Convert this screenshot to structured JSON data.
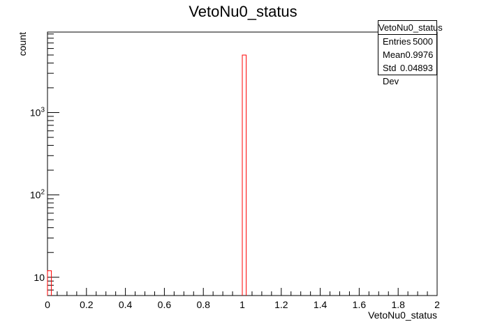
{
  "chart_data": {
    "type": "bar",
    "title": "VetoNu0_status",
    "xlabel": "VetoNu0_status",
    "ylabel": "count",
    "xlim": [
      0,
      2
    ],
    "ylim_log": [
      6,
      9500
    ],
    "log_y": true,
    "x_ticks": [
      "0",
      "0.2",
      "0.4",
      "0.6",
      "0.8",
      "1",
      "1.2",
      "1.4",
      "1.6",
      "1.8",
      "2"
    ],
    "y_ticks": [
      {
        "value": 10,
        "base": "10",
        "exp": ""
      },
      {
        "value": 100,
        "base": "10",
        "exp": "2"
      },
      {
        "value": 1000,
        "base": "10",
        "exp": "3"
      }
    ],
    "bins": {
      "width": 0.02
    },
    "points": [
      {
        "x_low": 0.0,
        "x_high": 0.02,
        "count": 12
      },
      {
        "x_low": 1.0,
        "x_high": 1.02,
        "count": 4988
      }
    ],
    "line_color": "#ff0000"
  },
  "stats": {
    "title": "VetoNu0_status",
    "rows": [
      {
        "label": "Entries",
        "value": "5000"
      },
      {
        "label": "Mean",
        "value": "0.9976"
      },
      {
        "label": "Std Dev",
        "value": "0.04893"
      }
    ]
  }
}
